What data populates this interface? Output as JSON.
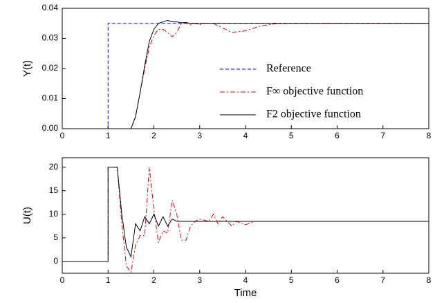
{
  "chart_data": [
    {
      "type": "line",
      "ylabel": "Y(t)",
      "xlim": [
        0,
        8
      ],
      "xticks": [
        0,
        1,
        2,
        3,
        4,
        5,
        6,
        7,
        8
      ],
      "ylim": [
        0,
        0.04
      ],
      "yticks": [
        {
          "value": 0,
          "label": "0.00"
        },
        {
          "value": 0.01,
          "label": "0.01"
        },
        {
          "value": 0.02,
          "label": "0.02"
        },
        {
          "value": 0.03,
          "label": "0.03"
        },
        {
          "value": 0.04,
          "label": "0.04"
        }
      ],
      "legend": "right",
      "series": [
        {
          "name": "Reference",
          "color": "#0000ff",
          "style": "dashed",
          "x": [
            0,
            1,
            1,
            8
          ],
          "values": [
            0,
            0,
            0.035,
            0.035
          ]
        },
        {
          "name": "F∞ objective function",
          "color": "#e00000",
          "style": "dashdot",
          "x": [
            0,
            1.5,
            1.6,
            1.7,
            1.8,
            1.9,
            2.0,
            2.1,
            2.2,
            2.3,
            2.4,
            2.5,
            2.6,
            2.7,
            2.8,
            2.9,
            3.0,
            3.1,
            3.3,
            3.5,
            3.7,
            4.0,
            4.3,
            4.6,
            5,
            8
          ],
          "values": [
            0,
            0,
            0.004,
            0.012,
            0.02,
            0.027,
            0.031,
            0.033,
            0.033,
            0.032,
            0.0305,
            0.032,
            0.035,
            0.035,
            0.0345,
            0.035,
            0.0345,
            0.035,
            0.035,
            0.0335,
            0.032,
            0.0325,
            0.034,
            0.0348,
            0.035,
            0.035
          ]
        },
        {
          "name": "F2 objective function",
          "color": "#000000",
          "style": "solid",
          "x": [
            0,
            1.5,
            1.6,
            1.7,
            1.8,
            1.9,
            2.0,
            2.1,
            2.2,
            2.3,
            2.4,
            2.5,
            2.6,
            2.7,
            2.8,
            3,
            3.5,
            4,
            8
          ],
          "values": [
            0,
            0,
            0.004,
            0.012,
            0.021,
            0.029,
            0.033,
            0.035,
            0.0355,
            0.036,
            0.0355,
            0.0355,
            0.0352,
            0.0353,
            0.035,
            0.035,
            0.035,
            0.035,
            0.035
          ]
        }
      ]
    },
    {
      "type": "line",
      "ylabel": "U(t)",
      "xlabel": "Time",
      "xlim": [
        0,
        8
      ],
      "xticks": [
        0,
        1,
        2,
        3,
        4,
        5,
        6,
        7,
        8
      ],
      "ylim": [
        -2.5,
        22
      ],
      "yticks": [
        0,
        5,
        10,
        15,
        20
      ],
      "series": [
        {
          "color": "#e00000",
          "style": "dashdot",
          "x": [
            0,
            1,
            1,
            1.2,
            1.3,
            1.4,
            1.5,
            1.6,
            1.7,
            1.8,
            1.9,
            2.0,
            2.1,
            2.2,
            2.3,
            2.4,
            2.5,
            2.6,
            2.7,
            2.8,
            2.9,
            3.0,
            3.2,
            3.3,
            3.4,
            3.5,
            3.7,
            3.8,
            4,
            4.2,
            8
          ],
          "values": [
            0,
            0,
            20,
            20,
            8,
            -1,
            -2.3,
            3.5,
            5.5,
            5.5,
            20,
            11,
            4,
            6.5,
            6,
            13,
            10,
            4.5,
            4.5,
            7.5,
            8.5,
            9,
            8.5,
            10,
            8,
            9.5,
            7.5,
            8.5,
            7.8,
            8.5,
            8.5
          ]
        },
        {
          "color": "#000000",
          "style": "solid",
          "x": [
            0,
            1,
            1,
            1.2,
            1.3,
            1.4,
            1.5,
            1.6,
            1.7,
            1.8,
            1.9,
            2.0,
            2.1,
            2.2,
            2.3,
            2.4,
            2.5,
            2.6,
            2.7,
            2.8,
            3,
            8
          ],
          "values": [
            0,
            0,
            20,
            20,
            10,
            3,
            1,
            8,
            6.5,
            9.5,
            8,
            10,
            7.5,
            9.5,
            7.5,
            9,
            8.5,
            8.5,
            8.5,
            8.5,
            8.5,
            8.5
          ]
        }
      ]
    }
  ]
}
